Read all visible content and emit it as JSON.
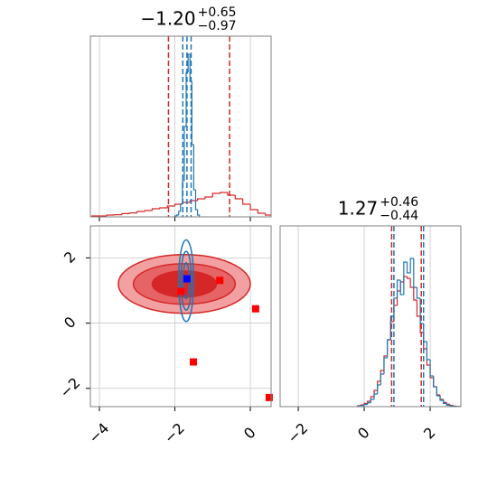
{
  "chart_data": [
    {
      "type": "histogram",
      "title": {
        "main": "−1.20",
        "upper": "+0.65",
        "lower": "−0.97"
      },
      "xlim": [
        -4.24,
        0.55
      ],
      "ylim": [
        0,
        1
      ],
      "xticks": [
        -4,
        -2,
        0
      ],
      "grid": true,
      "series": [
        {
          "color": "#d62728",
          "bins": [
            -4.2,
            -4.0,
            -3.8,
            -3.6,
            -3.4,
            -3.2,
            -3.0,
            -2.8,
            -2.6,
            -2.4,
            -2.2,
            -2.0,
            -1.8,
            -1.6,
            -1.4,
            -1.2,
            -1.0,
            -0.8,
            -0.6,
            -0.4,
            -0.2,
            0.0,
            0.2,
            0.4,
            0.6
          ],
          "values": [
            0.005,
            0.005,
            0.01,
            0.012,
            0.018,
            0.022,
            0.03,
            0.035,
            0.045,
            0.05,
            0.06,
            0.07,
            0.08,
            0.09,
            0.1,
            0.11,
            0.13,
            0.135,
            0.12,
            0.1,
            0.07,
            0.04,
            0.02,
            0.01
          ],
          "quantiles": [
            -2.17,
            -0.55
          ]
        },
        {
          "color": "#1f77b4",
          "bins": [
            -2.0,
            -1.95,
            -1.9,
            -1.85,
            -1.8,
            -1.75,
            -1.7,
            -1.65,
            -1.6,
            -1.55,
            -1.5,
            -1.45,
            -1.4,
            -1.35
          ],
          "values": [
            0.005,
            0.01,
            0.03,
            0.07,
            0.2,
            0.5,
            0.8,
            0.9,
            0.75,
            0.4,
            0.15,
            0.04,
            0.01
          ],
          "quantiles": [
            -1.79,
            -1.68,
            -1.57
          ]
        }
      ]
    },
    {
      "type": "contour",
      "xlim": [
        -4.24,
        0.55
      ],
      "ylim": [
        -2.56,
        2.98
      ],
      "xticks": [
        {
          "value": -4,
          "label": "−4"
        },
        {
          "value": -2,
          "label": "−2"
        },
        {
          "value": 0,
          "label": "0"
        }
      ],
      "yticks": [
        {
          "value": -2,
          "label": "−2"
        },
        {
          "value": 0,
          "label": "0"
        },
        {
          "value": 2,
          "label": "2"
        }
      ],
      "grid": true,
      "contours": [
        {
          "color": "#d62728",
          "fills": [
            "#f2a0a1",
            "#e66465",
            "#d62728"
          ],
          "center": [
            -1.75,
            1.2
          ],
          "levels": [
            [
              1.75,
              0.9
            ],
            [
              1.35,
              0.62
            ],
            [
              0.85,
              0.4
            ]
          ]
        },
        {
          "color": "#1f77b4",
          "fills": [
            "none",
            "none",
            "none"
          ],
          "center": [
            -1.7,
            1.3
          ],
          "levels": [
            [
              0.2,
              1.25
            ],
            [
              0.14,
              0.9
            ],
            [
              0.08,
              0.55
            ]
          ]
        }
      ],
      "points": [
        {
          "color": "#ff0000",
          "x": [
            -1.84,
            -0.81,
            0.14,
            -1.51,
            0.5
          ],
          "y": [
            0.97,
            1.31,
            0.44,
            -1.19,
            -2.28
          ]
        },
        {
          "color": "#0000ff",
          "x": [
            -1.68
          ],
          "y": [
            1.36
          ]
        }
      ]
    },
    {
      "type": "histogram",
      "title": {
        "main": "1.27",
        "upper": "+0.46",
        "lower": "−0.44"
      },
      "xlim": [
        -2.55,
        2.93
      ],
      "ylim": [
        0,
        1
      ],
      "xticks": [
        {
          "value": -2,
          "label": "−2"
        },
        {
          "value": 0,
          "label": "0"
        },
        {
          "value": 2,
          "label": "2"
        }
      ],
      "grid": true,
      "series": [
        {
          "color": "#d62728",
          "bins": [
            -0.2,
            -0.1,
            0.0,
            0.1,
            0.2,
            0.3,
            0.4,
            0.5,
            0.6,
            0.7,
            0.8,
            0.9,
            1.0,
            1.1,
            1.2,
            1.3,
            1.4,
            1.5,
            1.6,
            1.7,
            1.8,
            1.9,
            2.0,
            2.1,
            2.2,
            2.3,
            2.4,
            2.5,
            2.6,
            2.7,
            2.8,
            2.9
          ],
          "values": [
            0.005,
            0.01,
            0.018,
            0.03,
            0.055,
            0.09,
            0.14,
            0.2,
            0.28,
            0.37,
            0.47,
            0.56,
            0.64,
            0.69,
            0.72,
            0.71,
            0.66,
            0.59,
            0.5,
            0.41,
            0.32,
            0.23,
            0.16,
            0.11,
            0.065,
            0.04,
            0.023,
            0.013,
            0.007,
            0.003,
            0.001
          ],
          "quantiles": [
            0.83,
            1.73
          ]
        },
        {
          "color": "#1f77b4",
          "bins": [
            -0.2,
            -0.1,
            0.0,
            0.1,
            0.2,
            0.3,
            0.4,
            0.5,
            0.6,
            0.7,
            0.8,
            0.9,
            1.0,
            1.1,
            1.2,
            1.3,
            1.4,
            1.5,
            1.6,
            1.7,
            1.8,
            1.9,
            2.0,
            2.1,
            2.2,
            2.3,
            2.4,
            2.5,
            2.6,
            2.7,
            2.8,
            2.9
          ],
          "values": [
            0.003,
            0.006,
            0.012,
            0.022,
            0.04,
            0.07,
            0.12,
            0.18,
            0.27,
            0.37,
            0.5,
            0.6,
            0.7,
            0.62,
            0.8,
            0.74,
            0.82,
            0.66,
            0.6,
            0.46,
            0.36,
            0.26,
            0.17,
            0.11,
            0.06,
            0.035,
            0.018,
            0.008,
            0.004,
            0.002,
            0.001
          ],
          "quantiles": [
            0.9,
            1.8
          ]
        }
      ]
    }
  ]
}
